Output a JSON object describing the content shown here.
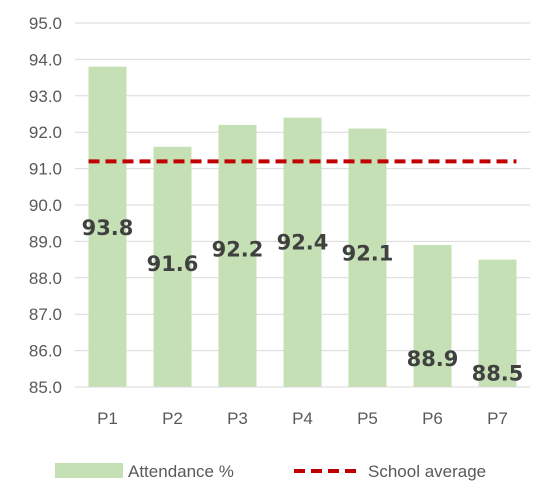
{
  "chart_data": {
    "type": "bar",
    "categories": [
      "P1",
      "P2",
      "P3",
      "P4",
      "P5",
      "P6",
      "P7"
    ],
    "series": [
      {
        "name": "Attendance %",
        "values": [
          93.8,
          91.6,
          92.2,
          92.4,
          92.1,
          88.9,
          88.5
        ],
        "color": "#c5e0b4"
      },
      {
        "name": "School average",
        "type": "line",
        "style": "dashed",
        "values": [
          91.2,
          91.2,
          91.2,
          91.2,
          91.2,
          91.2,
          91.2
        ],
        "color": "#c00000"
      }
    ],
    "data_labels": [
      "93.8",
      "91.6",
      "92.2",
      "92.4",
      "92.1",
      "88.9",
      "88.5"
    ],
    "yticks": [
      "85.0",
      "86.0",
      "87.0",
      "88.0",
      "89.0",
      "90.0",
      "91.0",
      "92.0",
      "93.0",
      "94.0",
      "95.0"
    ],
    "ylim": [
      85,
      95
    ],
    "grid": true,
    "legend_position": "bottom",
    "title": "",
    "xlabel": "",
    "ylabel": ""
  }
}
